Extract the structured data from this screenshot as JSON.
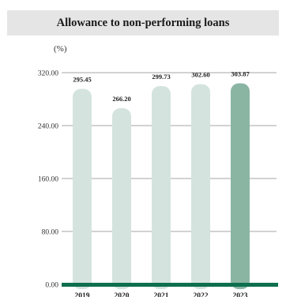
{
  "title": "Allowance to non-performing loans",
  "unit": "(%)",
  "colors": {
    "bar": "#d4e3de",
    "bar_highlight": "#8ab5a3",
    "baseline": "#0e6f4f",
    "grid": "#888888"
  },
  "chart_data": {
    "type": "bar",
    "title": "Allowance to non-performing loans",
    "ylabel": "(%)",
    "xlabel": "",
    "categories": [
      "2019",
      "2020",
      "2021",
      "2022",
      "2023"
    ],
    "values": [
      295.45,
      266.2,
      299.73,
      302.6,
      303.87
    ],
    "value_labels": [
      "295.45",
      "266.20",
      "299.73",
      "302.60",
      "303.87"
    ],
    "highlight_index": 4,
    "ylim": [
      0,
      320
    ],
    "yticks": [
      0,
      80,
      160,
      240,
      320
    ],
    "ytick_labels": [
      "0.00",
      "80.00",
      "160.00",
      "240.00",
      "320.00"
    ],
    "grid": true,
    "legend": "none"
  }
}
